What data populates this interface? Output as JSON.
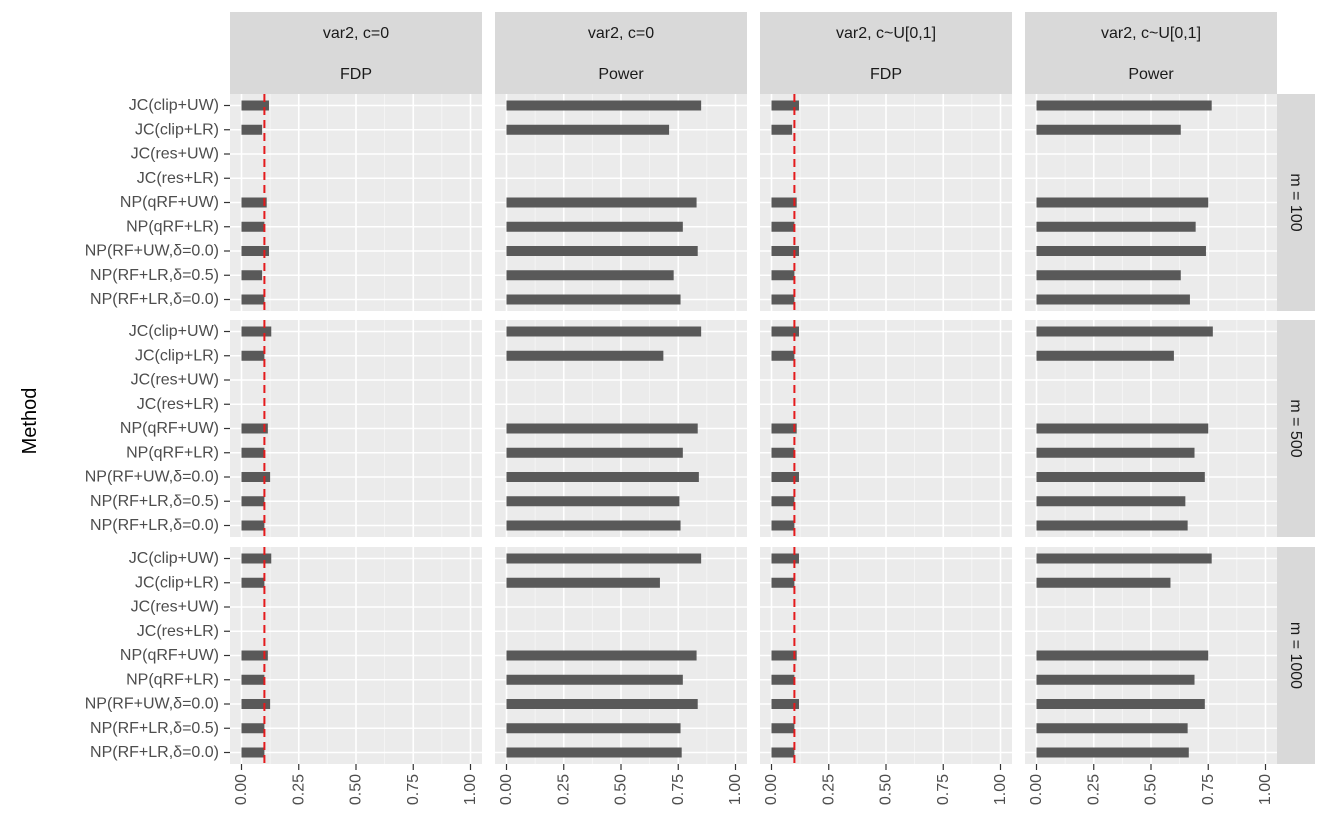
{
  "chart_data": {
    "type": "bar",
    "orientation": "horizontal",
    "ylabel": "Method",
    "xlabel": "",
    "xlim": [
      0,
      1
    ],
    "x_ticks": [
      "0.00",
      "0.25",
      "0.50",
      "0.75",
      "1.00"
    ],
    "reference_line": {
      "value": 0.1,
      "color": "#e41a1c",
      "style": "dashed",
      "applies_to": "FDP"
    },
    "categories": [
      "JC(clip+UW)",
      "JC(clip+LR)",
      "JC(res+UW)",
      "JC(res+LR)",
      "NP(qRF+UW)",
      "NP(qRF+LR)",
      "NP(RF+UW,δ=0.0)",
      "NP(RF+LR,δ=0.5)",
      "NP(RF+LR,δ=0.0)"
    ],
    "column_facets": [
      {
        "label_top": "var2, c=0",
        "label_bottom": "FDP",
        "metric": "FDP"
      },
      {
        "label_top": "var2, c=0",
        "label_bottom": "Power",
        "metric": "Power"
      },
      {
        "label_top": "var2, c~U[0,1]",
        "label_bottom": "FDP",
        "metric": "FDP"
      },
      {
        "label_top": "var2, c~U[0,1]",
        "label_bottom": "Power",
        "metric": "Power"
      }
    ],
    "row_facets": [
      "m = 100",
      "m = 500",
      "m = 1000"
    ],
    "values": [
      [
        [
          0.12,
          0.09,
          0.0,
          0.0,
          0.11,
          0.1,
          0.12,
          0.09,
          0.1
        ],
        [
          0.85,
          0.71,
          0.0,
          0.0,
          0.83,
          0.77,
          0.835,
          0.73,
          0.76
        ],
        [
          0.12,
          0.09,
          0.0,
          0.0,
          0.11,
          0.1,
          0.12,
          0.1,
          0.1
        ],
        [
          0.765,
          0.63,
          0.0,
          0.0,
          0.75,
          0.695,
          0.74,
          0.63,
          0.67
        ]
      ],
      [
        [
          0.13,
          0.1,
          0.0,
          0.0,
          0.115,
          0.1,
          0.125,
          0.1,
          0.1
        ],
        [
          0.85,
          0.685,
          0.0,
          0.0,
          0.835,
          0.77,
          0.84,
          0.755,
          0.76
        ],
        [
          0.12,
          0.1,
          0.0,
          0.0,
          0.11,
          0.1,
          0.12,
          0.1,
          0.1
        ],
        [
          0.77,
          0.6,
          0.0,
          0.0,
          0.75,
          0.69,
          0.735,
          0.65,
          0.66
        ]
      ],
      [
        [
          0.13,
          0.1,
          0.0,
          0.0,
          0.115,
          0.1,
          0.125,
          0.1,
          0.1
        ],
        [
          0.85,
          0.67,
          0.0,
          0.0,
          0.83,
          0.77,
          0.835,
          0.76,
          0.765
        ],
        [
          0.12,
          0.1,
          0.0,
          0.0,
          0.11,
          0.1,
          0.12,
          0.1,
          0.1
        ],
        [
          0.765,
          0.585,
          0.0,
          0.0,
          0.75,
          0.69,
          0.735,
          0.66,
          0.665
        ]
      ]
    ],
    "colors": {
      "bar": "#595959",
      "panel_bg": "#ebebeb",
      "grid": "#ffffff",
      "strip_bg": "#d9d9d9",
      "axis_text": "#4d4d4d",
      "strip_text": "#1a1a1a"
    }
  }
}
